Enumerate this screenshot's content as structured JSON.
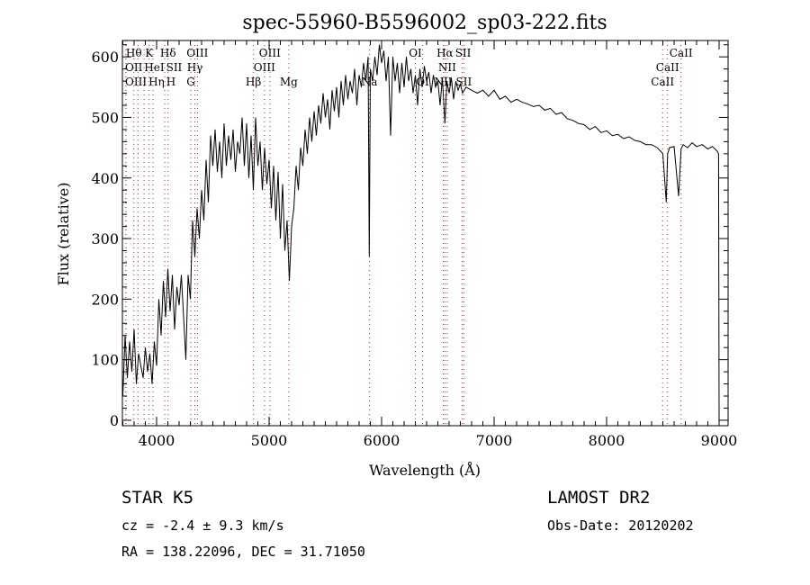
{
  "chart_data": {
    "type": "line",
    "title": "spec-55960-B5596002_sp03-222.fits",
    "xlabel": "Wavelength (Å)",
    "ylabel": "Flux (relative)",
    "xlim": [
      3696,
      9080
    ],
    "ylim": [
      -9,
      627
    ],
    "xticks": [
      4000,
      5000,
      6000,
      7000,
      8000,
      9000
    ],
    "yticks": [
      0,
      100,
      200,
      300,
      400,
      500,
      600
    ],
    "grid": false,
    "series": [
      {
        "name": "spectrum",
        "x": [
          3700,
          3720,
          3740,
          3760,
          3780,
          3800,
          3820,
          3840,
          3860,
          3880,
          3900,
          3920,
          3940,
          3960,
          3980,
          4000,
          4020,
          4040,
          4060,
          4080,
          4100,
          4120,
          4140,
          4160,
          4180,
          4200,
          4220,
          4240,
          4260,
          4280,
          4300,
          4320,
          4340,
          4360,
          4380,
          4400,
          4420,
          4440,
          4460,
          4480,
          4500,
          4520,
          4540,
          4560,
          4580,
          4600,
          4620,
          4640,
          4660,
          4680,
          4700,
          4720,
          4740,
          4760,
          4780,
          4800,
          4820,
          4840,
          4860,
          4880,
          4900,
          4920,
          4940,
          4960,
          4980,
          5000,
          5020,
          5040,
          5060,
          5080,
          5100,
          5120,
          5140,
          5160,
          5180,
          5200,
          5220,
          5240,
          5260,
          5280,
          5300,
          5320,
          5340,
          5360,
          5380,
          5400,
          5420,
          5440,
          5460,
          5480,
          5500,
          5520,
          5540,
          5560,
          5580,
          5600,
          5620,
          5640,
          5660,
          5680,
          5700,
          5720,
          5740,
          5760,
          5780,
          5800,
          5820,
          5840,
          5860,
          5880,
          5890,
          5900,
          5920,
          5940,
          5960,
          5980,
          6000,
          6020,
          6040,
          6060,
          6080,
          6100,
          6120,
          6140,
          6160,
          6180,
          6200,
          6220,
          6240,
          6260,
          6280,
          6300,
          6320,
          6340,
          6360,
          6380,
          6400,
          6420,
          6440,
          6460,
          6480,
          6500,
          6520,
          6540,
          6563,
          6580,
          6600,
          6620,
          6640,
          6660,
          6680,
          6700,
          6720,
          6750,
          6800,
          6850,
          6900,
          6950,
          7000,
          7050,
          7100,
          7150,
          7200,
          7250,
          7300,
          7350,
          7400,
          7450,
          7500,
          7550,
          7600,
          7650,
          7700,
          7750,
          7800,
          7850,
          7900,
          7950,
          8000,
          8050,
          8100,
          8150,
          8200,
          8250,
          8300,
          8350,
          8400,
          8450,
          8500,
          8530,
          8542,
          8560,
          8600,
          8640,
          8662,
          8680,
          8720,
          8760,
          8800,
          8850,
          8900,
          8940,
          8980,
          8995,
          9000
        ],
        "y": [
          40,
          140,
          70,
          130,
          80,
          150,
          60,
          110,
          90,
          70,
          120,
          80,
          110,
          60,
          130,
          90,
          200,
          140,
          230,
          170,
          250,
          180,
          240,
          150,
          220,
          190,
          240,
          170,
          100,
          240,
          200,
          330,
          270,
          350,
          300,
          380,
          330,
          430,
          360,
          470,
          420,
          480,
          410,
          460,
          400,
          490,
          420,
          470,
          430,
          480,
          410,
          460,
          440,
          500,
          420,
          490,
          400,
          470,
          380,
          500,
          420,
          460,
          380,
          450,
          390,
          430,
          350,
          420,
          330,
          410,
          300,
          390,
          280,
          330,
          230,
          320,
          350,
          420,
          380,
          450,
          420,
          480,
          440,
          500,
          460,
          510,
          470,
          520,
          490,
          540,
          500,
          530,
          480,
          545,
          510,
          550,
          500,
          560,
          520,
          570,
          530,
          560,
          540,
          580,
          520,
          570,
          550,
          590,
          560,
          600,
          270,
          580,
          560,
          600,
          570,
          620,
          590,
          610,
          560,
          600,
          470,
          600,
          560,
          590,
          540,
          590,
          550,
          600,
          560,
          580,
          540,
          570,
          520,
          580,
          550,
          585,
          560,
          575,
          540,
          570,
          550,
          560,
          520,
          565,
          490,
          560,
          540,
          565,
          530,
          560,
          545,
          555,
          540,
          550,
          545,
          540,
          545,
          535,
          545,
          530,
          535,
          525,
          530,
          525,
          522,
          518,
          520,
          512,
          515,
          505,
          508,
          498,
          495,
          490,
          488,
          480,
          485,
          475,
          478,
          470,
          472,
          465,
          468,
          462,
          460,
          455,
          455,
          450,
          440,
          360,
          440,
          450,
          452,
          370,
          448,
          455,
          450,
          458,
          452,
          455,
          448,
          452,
          445,
          440,
          5
        ]
      }
    ],
    "lines": [
      {
        "label": "Hθ",
        "wl": 3798,
        "row": 0
      },
      {
        "label": "K",
        "wl": 3934,
        "row": 0
      },
      {
        "label": "Hδ",
        "wl": 4102,
        "row": 0
      },
      {
        "label": "OIII",
        "wl": 4363,
        "row": 0
      },
      {
        "label": "OIII",
        "wl": 5007,
        "row": 0
      },
      {
        "label": "OI",
        "wl": 6300,
        "row": 0
      },
      {
        "label": "Hα",
        "wl": 6563,
        "row": 0
      },
      {
        "label": "SII",
        "wl": 6716,
        "row": 0
      },
      {
        "label": "CaII",
        "wl": 8662,
        "row": 0
      },
      {
        "label": "OII",
        "wl": 3727,
        "row": 1
      },
      {
        "label": "HeI",
        "wl": 3889,
        "row": 1
      },
      {
        "label": "SII",
        "wl": 4072,
        "row": 1
      },
      {
        "label": "Hγ",
        "wl": 4340,
        "row": 1
      },
      {
        "label": "OIII",
        "wl": 4959,
        "row": 1
      },
      {
        "label": "NII",
        "wl": 6583,
        "row": 1
      },
      {
        "label": "CaII",
        "wl": 8542,
        "row": 1
      },
      {
        "label": "OIII",
        "wl": 3727,
        "row": 2
      },
      {
        "label": "Hη",
        "wl": 3835,
        "row": 2
      },
      {
        "label": "H",
        "wl": 3968,
        "row": 2
      },
      {
        "label": "G",
        "wl": 4305,
        "row": 2
      },
      {
        "label": "Hβ",
        "wl": 4861,
        "row": 2
      },
      {
        "label": "Mg",
        "wl": 5175,
        "row": 2
      },
      {
        "label": "Na",
        "wl": 5893,
        "row": 2
      },
      {
        "label": "OI",
        "wl": 6364,
        "row": 2
      },
      {
        "label": "NII",
        "wl": 6548,
        "row": 2
      },
      {
        "label": "SII",
        "wl": 6731,
        "row": 2
      },
      {
        "label": "CaII",
        "wl": 8498,
        "row": 2
      }
    ]
  },
  "info": {
    "class": "STAR    K5",
    "cz": "cz = -2.4 ± 9.3 km/s",
    "coords": "RA = 138.22096, DEC =  31.71050",
    "survey": "LAMOST DR2",
    "obsdate": "Obs-Date: 20120202"
  }
}
